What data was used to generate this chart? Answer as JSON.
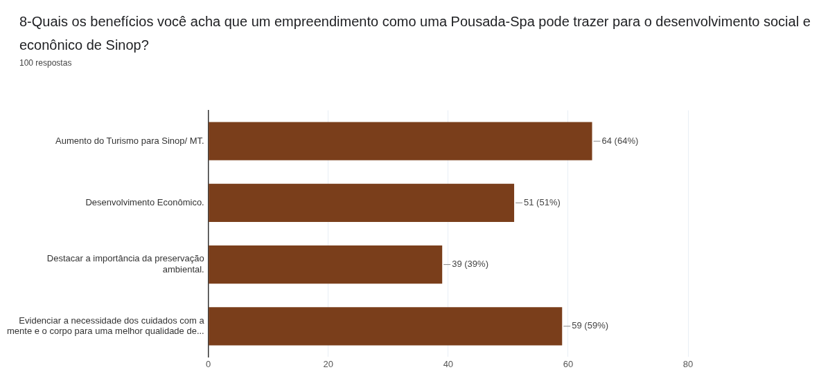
{
  "chart_data": {
    "type": "bar",
    "orientation": "horizontal",
    "title": "8-Quais os benefícios você acha que um empreendimento como uma Pousada-Spa pode trazer para o desenvolvimento social e econônico de Sinop?",
    "subtitle": "100 respostas",
    "categories": [
      "Aumento do Turismo para Sinop/ MT.",
      "Desenvolvimento Econômico.",
      "Destacar a importância da preservação ambiental.",
      "Evidenciar a necessidade dos cuidados com a mente e o corpo para uma melhor qualidade de..."
    ],
    "values": [
      64,
      51,
      39,
      59
    ],
    "color": "#7a3e1b",
    "value_labels": [
      "64 (64%)",
      "51 (51%)",
      "39 (39%)",
      "59 (59%)"
    ],
    "xlim": [
      0,
      80
    ],
    "xticks": [
      0,
      20,
      40,
      60,
      80
    ],
    "grid": "x"
  }
}
